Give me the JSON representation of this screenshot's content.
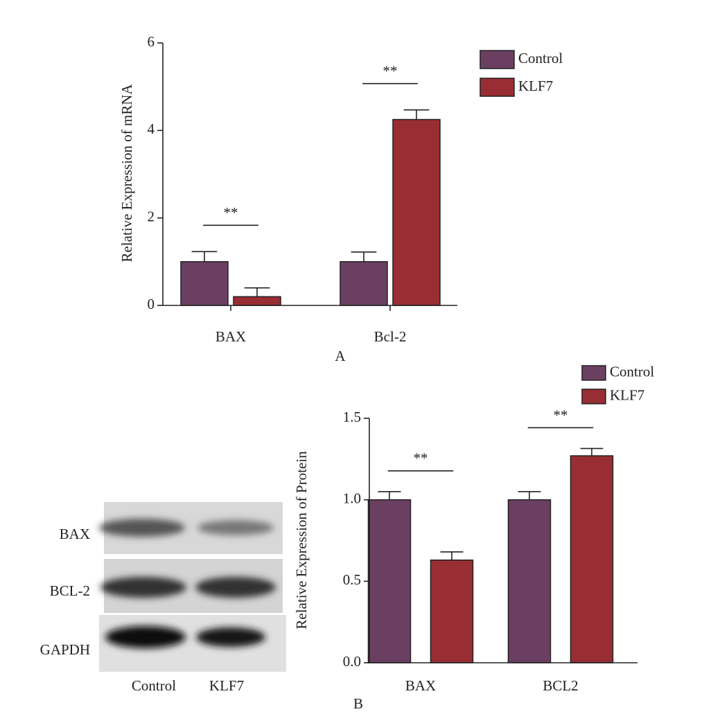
{
  "chart_data": [
    {
      "type": "bar",
      "panel_label": "A",
      "y_label": "Relative Expression of mRNA",
      "categories": [
        "BAX",
        "Bcl-2"
      ],
      "significance": [
        "**",
        "**"
      ],
      "series": [
        {
          "name": "Control",
          "color": "#6b3f62",
          "values": [
            1.0,
            1.0
          ],
          "errors": [
            0.23,
            0.22
          ]
        },
        {
          "name": "KLF7",
          "color": "#982e33",
          "values": [
            0.2,
            4.25
          ],
          "errors": [
            0.2,
            0.22
          ]
        }
      ],
      "ylim": [
        0,
        6
      ],
      "yticks": [
        0,
        2,
        4,
        6
      ]
    },
    {
      "type": "bar",
      "panel_label": "B",
      "y_label": "Relative Expression of Protein",
      "categories": [
        "BAX",
        "BCL2"
      ],
      "significance": [
        "**",
        "**"
      ],
      "series": [
        {
          "name": "Control",
          "color": "#6b3f62",
          "values": [
            1.0,
            1.0
          ],
          "errors": [
            0.05,
            0.05
          ]
        },
        {
          "name": "KLF7",
          "color": "#982e33",
          "values": [
            0.63,
            1.27
          ],
          "errors": [
            0.05,
            0.045
          ]
        }
      ],
      "ylim": [
        0,
        1.5
      ],
      "yticks": [
        {
          "value": 0,
          "label": "0.0"
        },
        0.5,
        {
          "value": 1,
          "label": "1.0"
        },
        1.5
      ]
    }
  ],
  "blot": {
    "rows": [
      "BAX",
      "BCL-2",
      "GAPDH"
    ],
    "lanes": [
      "Control",
      "KLF7"
    ]
  }
}
